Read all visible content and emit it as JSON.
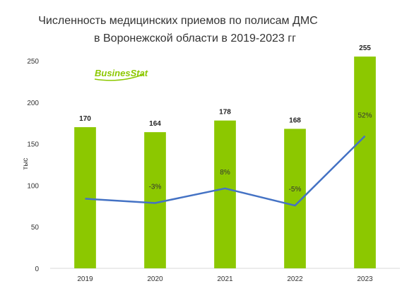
{
  "chart_data": {
    "type": "bar",
    "title_line1": "Численность медицинских приемов по полисам ДМС",
    "title_line2": "в Воронежской области в 2019-2023 гг",
    "ylabel": "тыс",
    "categories": [
      "2019",
      "2020",
      "2021",
      "2022",
      "2023"
    ],
    "values": [
      170,
      164,
      178,
      168,
      255
    ],
    "ylim": [
      0,
      250
    ],
    "yticks": [
      0,
      50,
      100,
      150,
      200,
      250
    ],
    "grid": false,
    "growth_line": {
      "labels": [
        "",
        "-3%",
        "8%",
        "-5%",
        "52%"
      ],
      "line_color": "#4472C4"
    },
    "bar_color": "#8CC800",
    "logo": {
      "text": "BusinesStat"
    }
  }
}
